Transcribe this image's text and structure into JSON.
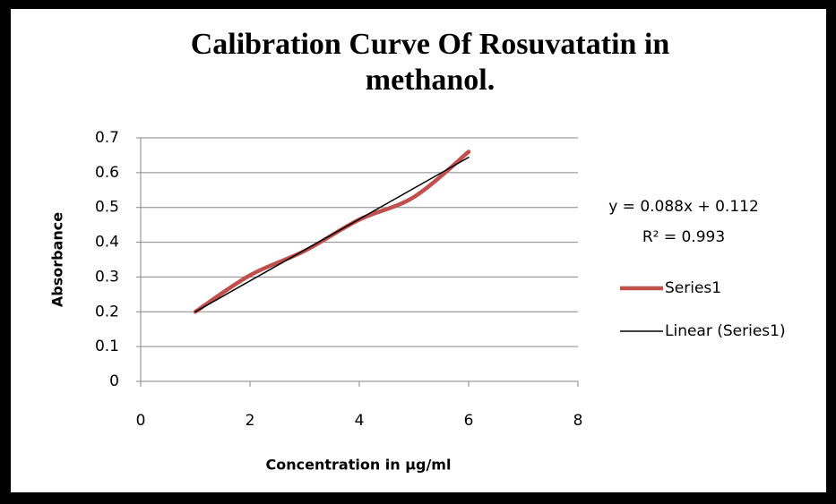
{
  "chart_data": {
    "type": "scatter",
    "title": "Calibration Curve Of Rosuvatatin in methanol.",
    "x_label": "Concentration in µg/ml",
    "y_label": "Absorbance",
    "series": [
      {
        "name": "Series1",
        "color": "#c0504d",
        "smooth": true,
        "x": [
          1,
          2,
          3,
          4,
          5,
          6
        ],
        "values": [
          0.2,
          0.305,
          0.375,
          0.465,
          0.53,
          0.66
        ]
      },
      {
        "name": "Linear (Series1)",
        "color": "#000000",
        "smooth": false,
        "x": [
          1,
          6
        ],
        "values": [
          0.2,
          0.644
        ]
      }
    ],
    "annotations": [
      "y = 0.088x + 0.112",
      "R² = 0.993"
    ],
    "xlim": [
      0,
      8
    ],
    "xticks": [
      0,
      2,
      4,
      6,
      8
    ],
    "ylim": [
      0,
      0.7
    ],
    "yticks": [
      0,
      0.1,
      0.2,
      0.3,
      0.4,
      0.5,
      0.6,
      0.7
    ],
    "grid": true,
    "legend": "right"
  }
}
